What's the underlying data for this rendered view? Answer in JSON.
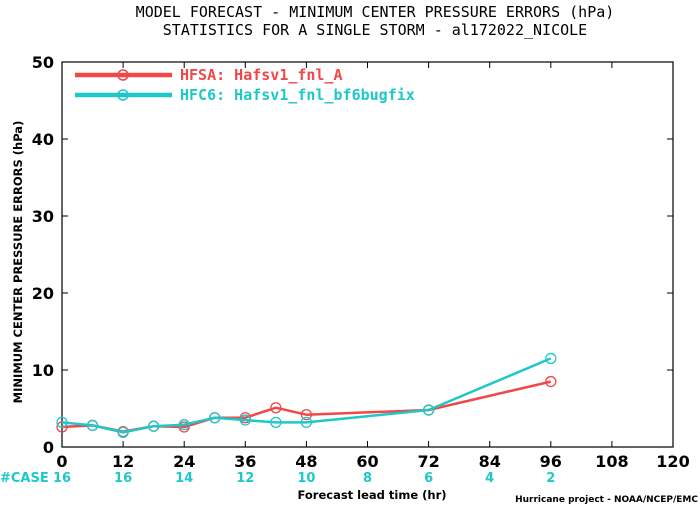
{
  "chart_data": {
    "type": "line",
    "title": "MODEL FORECAST - MINIMUM CENTER PRESSURE ERRORS (hPa)",
    "subtitle": "STATISTICS FOR A SINGLE STORM - al172022_NICOLE",
    "xlabel": "Forecast lead time (hr)",
    "ylabel": "MINIMUM CENTER PRESSURE ERRORS (hPa)",
    "xlim": [
      0,
      120
    ],
    "ylim": [
      0,
      50
    ],
    "xticks": [
      "0",
      "12",
      "24",
      "36",
      "48",
      "60",
      "72",
      "84",
      "96",
      "108",
      "120"
    ],
    "yticks": [
      "0",
      "10",
      "20",
      "30",
      "40",
      "50"
    ],
    "series": [
      {
        "name": "HFSA: Hafsv1_fnl_A",
        "color": "#f04848",
        "x": [
          0,
          6,
          12,
          18,
          24,
          30,
          36,
          42,
          48,
          72,
          96
        ],
        "y": [
          2.6,
          2.8,
          2.0,
          2.7,
          2.6,
          3.8,
          3.8,
          5.1,
          4.2,
          4.8,
          8.5
        ]
      },
      {
        "name": "HFC6: Hafsv1_fnl_bf6bugfix",
        "color": "#1ec8c8",
        "x": [
          0,
          6,
          12,
          18,
          24,
          30,
          36,
          42,
          48,
          72,
          96
        ],
        "y": [
          3.2,
          2.8,
          1.9,
          2.7,
          2.9,
          3.8,
          3.5,
          3.2,
          3.2,
          4.8,
          11.5
        ]
      }
    ],
    "case_label": "#CASE",
    "case_counts": {
      "hours": [
        0,
        12,
        24,
        36,
        48,
        60,
        72,
        84,
        96
      ],
      "values": [
        "16",
        "16",
        "14",
        "12",
        "10",
        "8",
        "6",
        "4",
        "2"
      ],
      "color": "#1ec8c8"
    },
    "legend_position": "top-left",
    "grid": false
  },
  "credit": "Hurricane project - NOAA/NCEP/EMC"
}
